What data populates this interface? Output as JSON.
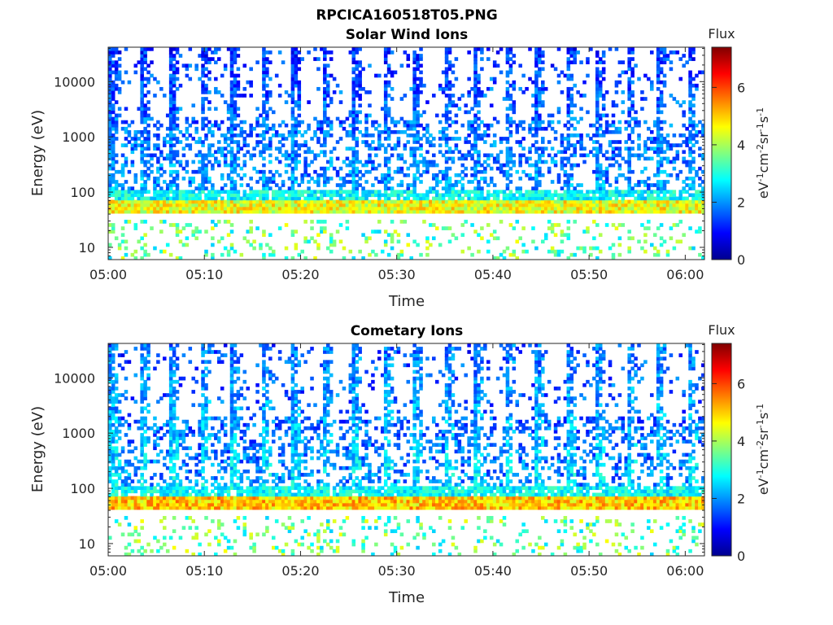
{
  "figure_title": "RPCICA160518T05.PNG",
  "chart_data": [
    {
      "type": "heatmap",
      "title": "Solar Wind Ions",
      "xlabel": "Time",
      "ylabel": "Energy (eV)",
      "x_ticks": [
        "05:00",
        "05:10",
        "05:20",
        "05:30",
        "05:40",
        "05:50",
        "06:00"
      ],
      "x_range": [
        "05:00",
        "06:02"
      ],
      "y_scale": "log",
      "y_ticks": [
        10,
        100,
        1000,
        10000
      ],
      "y_tick_labels": [
        "10",
        "100",
        "1000",
        "10000"
      ],
      "y_range": [
        6,
        42000
      ],
      "grid": false,
      "colorbar": {
        "title": "Flux",
        "label": "eV-1cm-2sr-1s-1",
        "range": [
          0,
          7.4
        ],
        "ticks": [
          0,
          2,
          4,
          6
        ],
        "colormap": "jet"
      },
      "features": {
        "band_energy_ev": 50,
        "band_flux": 4.5,
        "low_energy_cluster_flux": 3.5,
        "bursts_per_hour": 19,
        "burst_flux": 1.5
      }
    },
    {
      "type": "heatmap",
      "title": "Cometary Ions",
      "xlabel": "Time",
      "ylabel": "Energy (eV)",
      "x_ticks": [
        "05:00",
        "05:10",
        "05:20",
        "05:30",
        "05:40",
        "05:50",
        "06:00"
      ],
      "x_range": [
        "05:00",
        "06:02"
      ],
      "y_scale": "log",
      "y_ticks": [
        10,
        100,
        1000,
        10000
      ],
      "y_tick_labels": [
        "10",
        "100",
        "1000",
        "10000"
      ],
      "y_range": [
        6,
        42000
      ],
      "grid": false,
      "colorbar": {
        "title": "Flux",
        "label": "eV-1cm-2sr-1s-1",
        "range": [
          0,
          7.4
        ],
        "ticks": [
          0,
          2,
          4,
          6
        ],
        "colormap": "jet"
      },
      "features": {
        "band_energy_ev": 50,
        "band_flux": 5.0,
        "low_energy_cluster_flux": 3.5,
        "bursts_per_hour": 19,
        "burst_flux": 2.0
      }
    }
  ],
  "colors": {
    "frame": "#262626",
    "background": "#ffffff"
  }
}
